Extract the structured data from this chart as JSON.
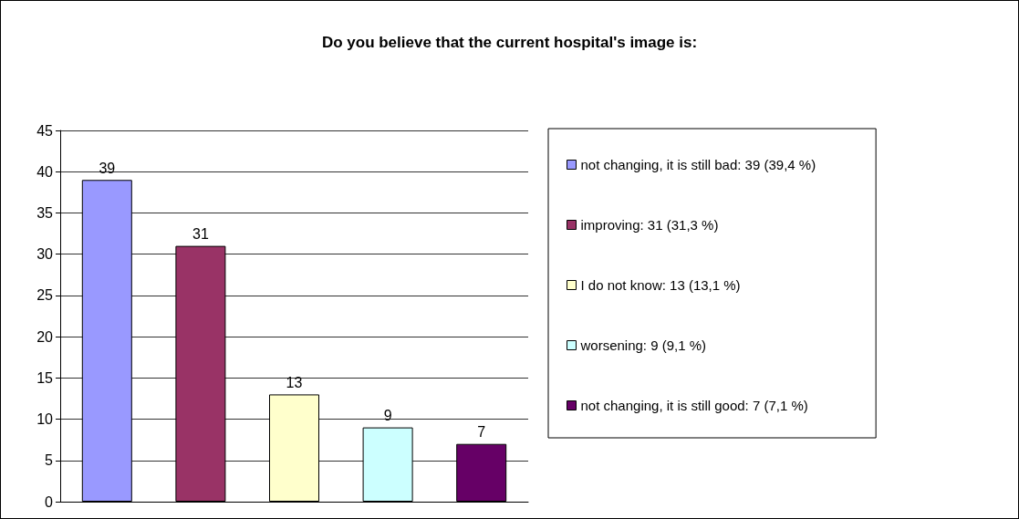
{
  "chart_data": {
    "type": "bar",
    "title": "Do you believe that the current hospital's image is:",
    "categories": [
      null,
      null,
      null,
      null,
      null
    ],
    "series": [
      {
        "name": "not changing, it is still bad: 39 (39,4 %)",
        "color": "#9999ff",
        "values": [
          39,
          null,
          null,
          null,
          null
        ]
      },
      {
        "name": "improving: 31 (31,3 %)",
        "color": "#993366",
        "values": [
          null,
          31,
          null,
          null,
          null
        ]
      },
      {
        "name": "I do not know: 13 (13,1 %)",
        "color": "#ffffcc",
        "values": [
          null,
          null,
          13,
          null,
          null
        ]
      },
      {
        "name": "worsening: 9 (9,1 %)",
        "color": "#ccffff",
        "values": [
          null,
          null,
          null,
          9,
          null
        ]
      },
      {
        "name": "not changing, it is still good: 7 (7,1 %)",
        "color": "#660066",
        "values": [
          null,
          null,
          null,
          null,
          7
        ]
      }
    ],
    "ylim": [
      0,
      45
    ],
    "yticks": [
      0,
      5,
      10,
      15,
      20,
      25,
      30,
      35,
      40,
      45
    ],
    "grid": "y",
    "legend": "right",
    "data_labels": true
  }
}
